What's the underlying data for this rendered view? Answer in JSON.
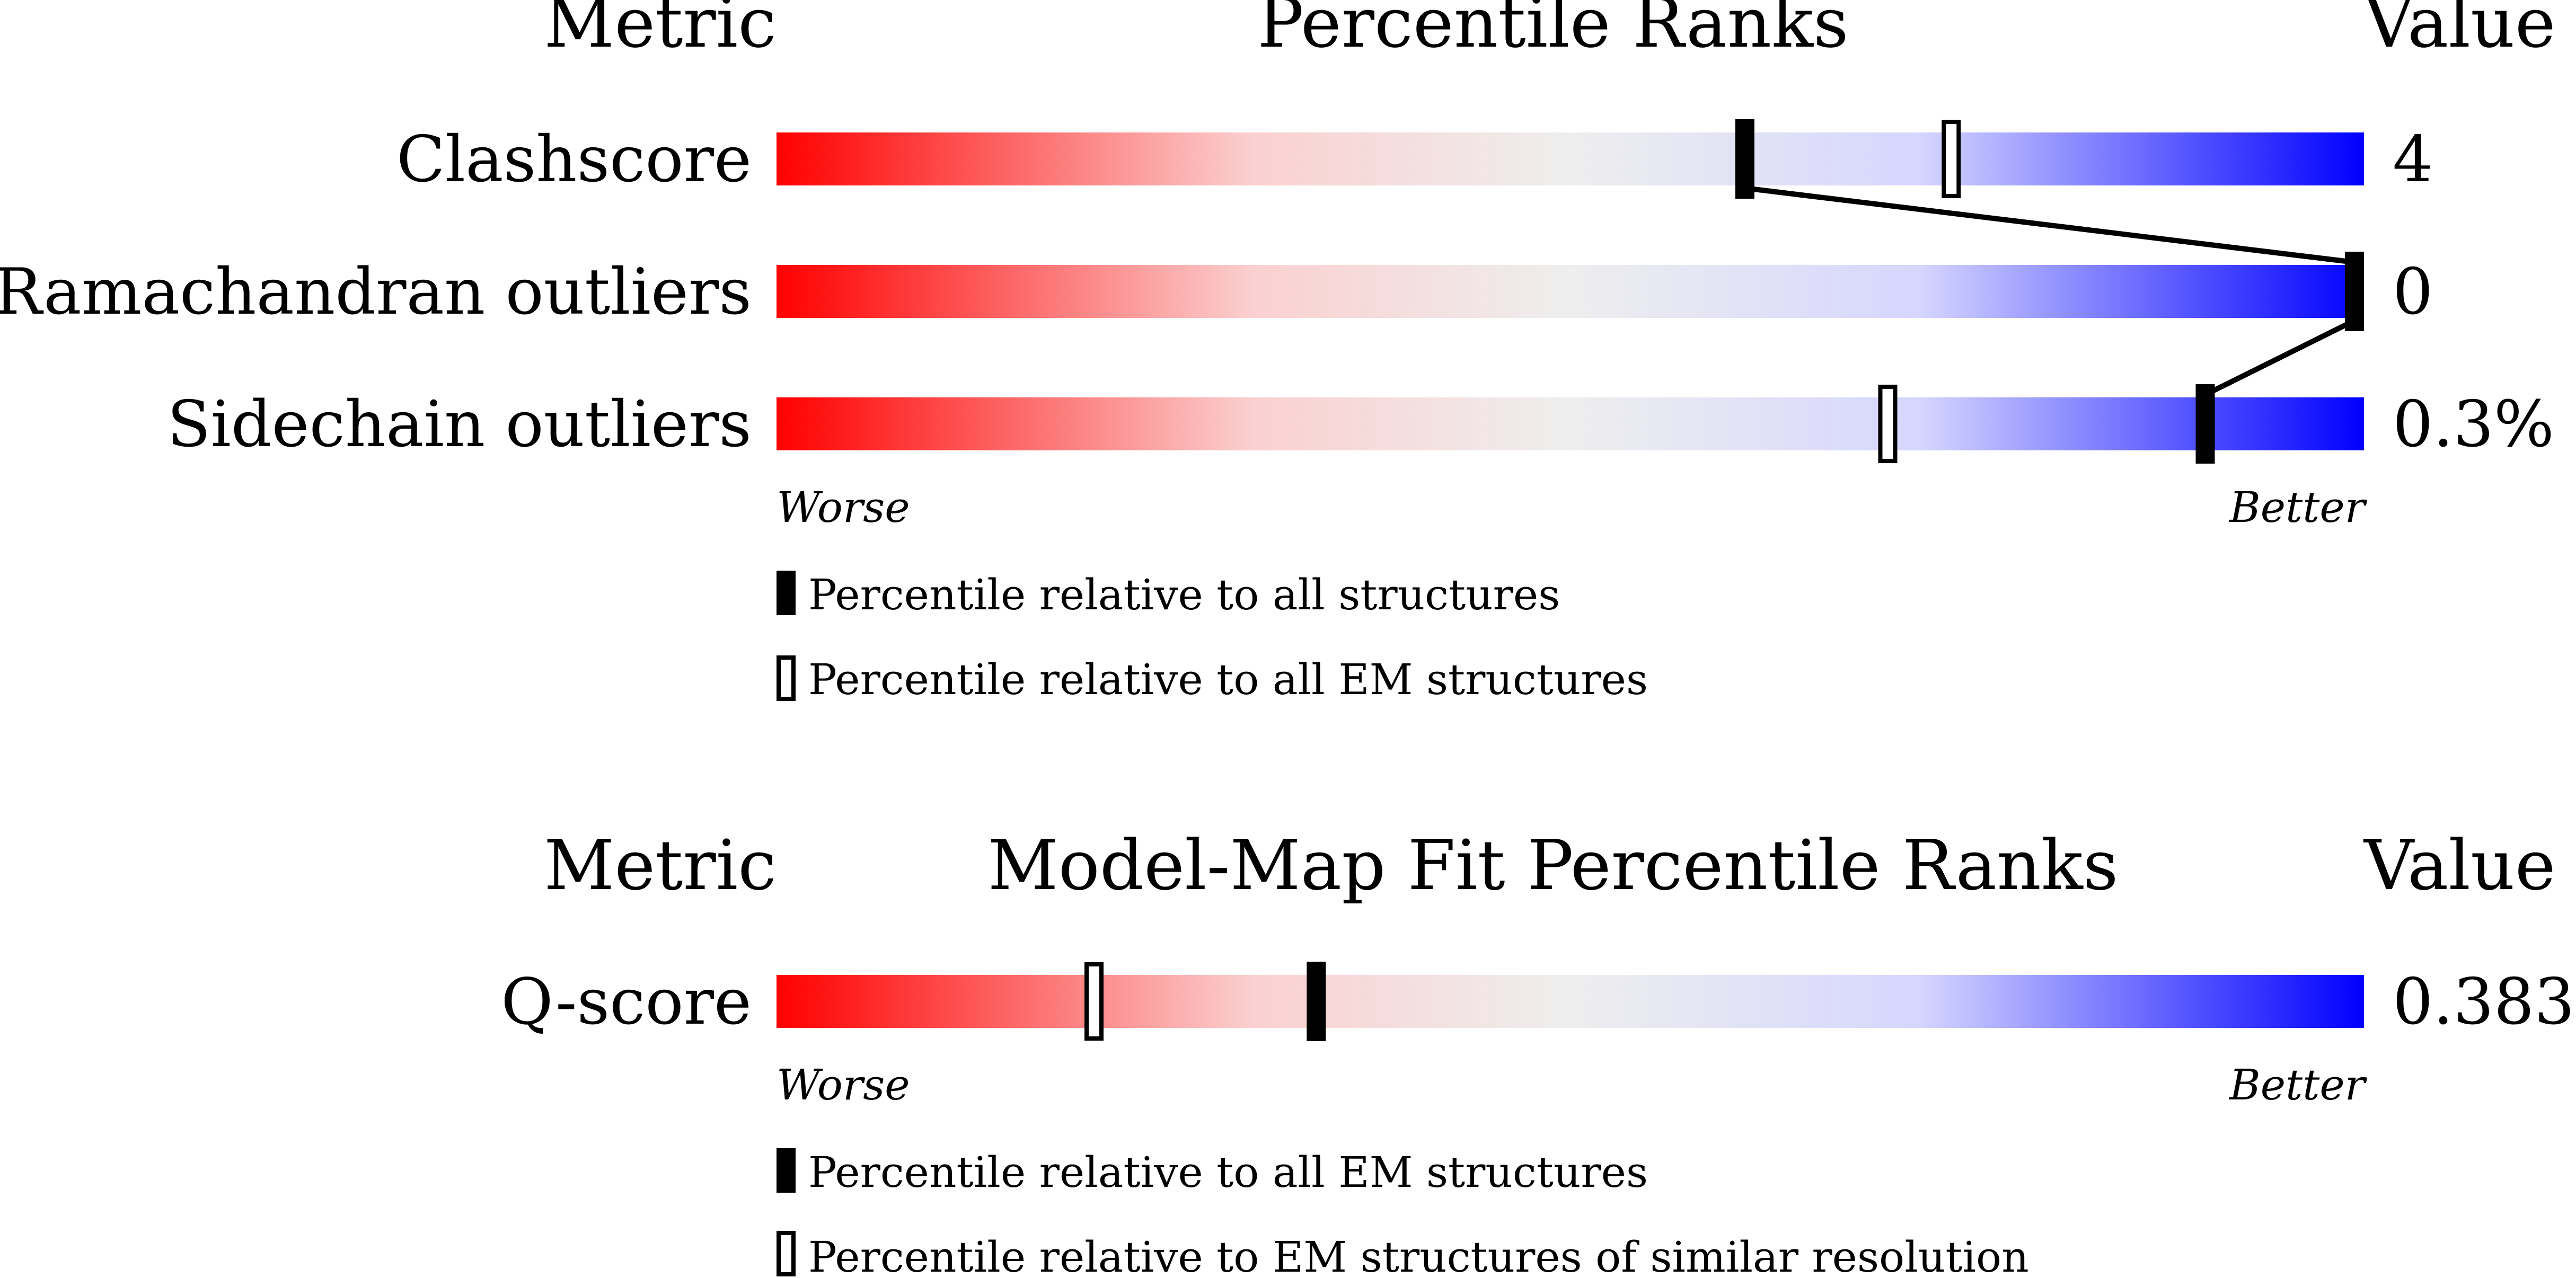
{
  "colors": {
    "worse": "#ff0000",
    "middle": "#eeeeee",
    "better_light": "#d6d6ff",
    "better": "#0000ff",
    "marker": "#000000",
    "text": "#000000"
  },
  "panel1": {
    "header_metric": "Metric",
    "header_title": "Percentile Ranks",
    "header_value": "Value",
    "worse_label": "Worse",
    "better_label": "Better",
    "legend": [
      {
        "marker": "filled",
        "text": "Percentile relative to all structures"
      },
      {
        "marker": "hollow",
        "text": "Percentile relative to all EM structures"
      }
    ]
  },
  "panel2": {
    "header_metric": "Metric",
    "header_title": "Model-Map Fit Percentile Ranks",
    "header_value": "Value",
    "worse_label": "Worse",
    "better_label": "Better",
    "legend": [
      {
        "marker": "filled",
        "text": "Percentile relative to all EM structures"
      },
      {
        "marker": "hollow",
        "text": "Percentile relative to EM structures of similar resolution"
      }
    ]
  },
  "chart_data": [
    {
      "type": "bar",
      "title": "Percentile Ranks",
      "xlim": [
        0,
        100
      ],
      "rows": [
        {
          "metric": "Clashscore",
          "value": "4",
          "percentile_all": 61,
          "percentile_em": 74
        },
        {
          "metric": "Ramachandran outliers",
          "value": "0",
          "percentile_all": 100,
          "percentile_em": 100
        },
        {
          "metric": "Sidechain outliers",
          "value": "0.3%",
          "percentile_all": 90,
          "percentile_em": 70
        }
      ],
      "connect_series": "percentile_all"
    },
    {
      "type": "bar",
      "title": "Model-Map Fit Percentile Ranks",
      "xlim": [
        0,
        100
      ],
      "rows": [
        {
          "metric": "Q-score",
          "value": "0.383",
          "percentile_all": 34,
          "percentile_em": 20
        }
      ],
      "connect_series": null
    }
  ]
}
